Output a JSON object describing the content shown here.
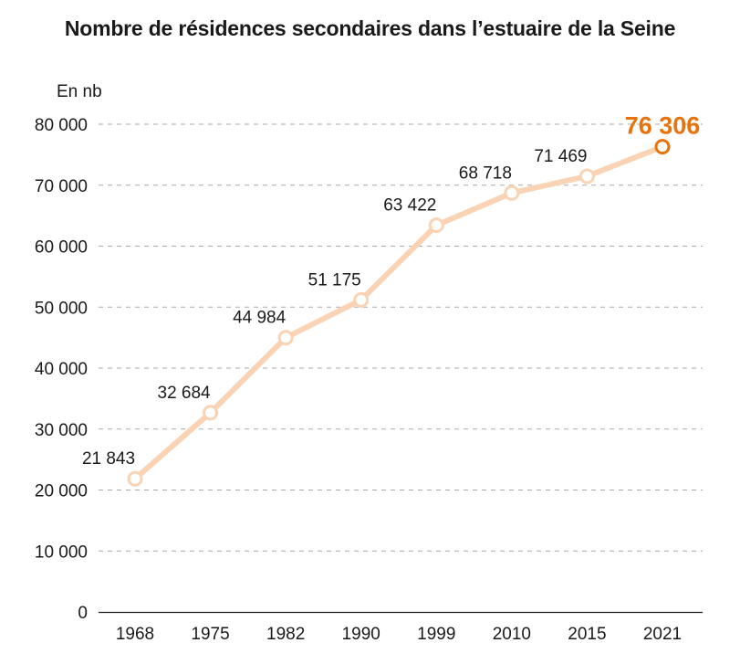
{
  "chart_data": {
    "type": "line",
    "title": "Nombre de résidences secondaires dans l’estuaire de la Seine",
    "unit_label": "En nb",
    "categories": [
      "1968",
      "1975",
      "1982",
      "1990",
      "1999",
      "2010",
      "2015",
      "2021"
    ],
    "values": [
      21843,
      32684,
      44984,
      51175,
      63422,
      68718,
      71469,
      76306
    ],
    "value_labels": [
      "21 843",
      "32 684",
      "44 984",
      "51 175",
      "63 422",
      "68 718",
      "71 469",
      "76 306"
    ],
    "y_ticks": [
      0,
      10000,
      20000,
      30000,
      40000,
      50000,
      60000,
      70000,
      80000
    ],
    "y_tick_labels": [
      "0",
      "10 000",
      "20 000",
      "30 000",
      "40 000",
      "50 000",
      "60 000",
      "70 000",
      "80 000"
    ],
    "ylim": [
      0,
      80000
    ],
    "grid": true,
    "colors": {
      "line": "#f9d3b3",
      "highlight": "#e8720c",
      "grid": "#aaaaaa",
      "axis": "#1a1a1a"
    }
  }
}
